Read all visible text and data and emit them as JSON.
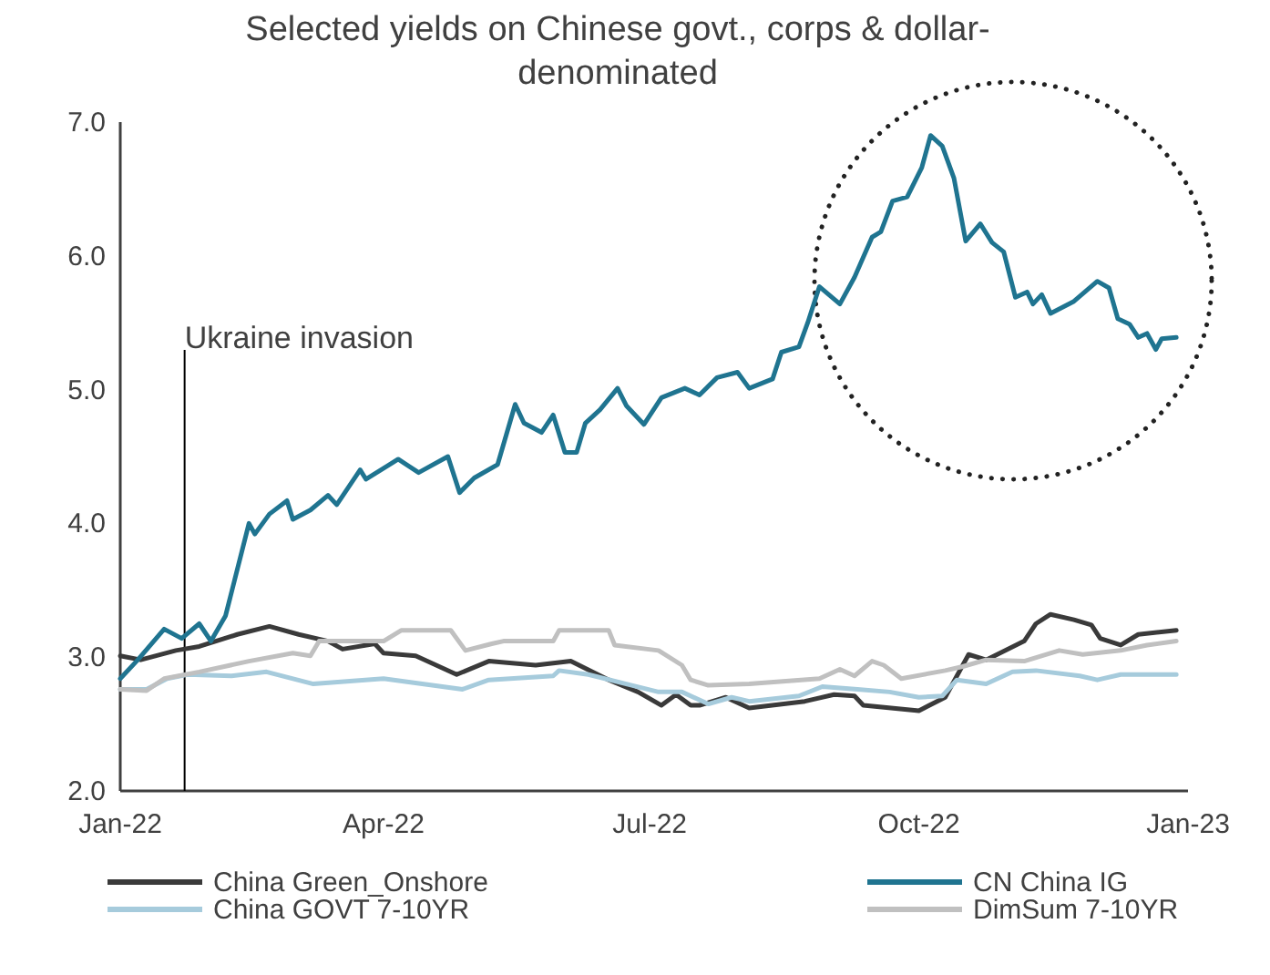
{
  "chart_data": {
    "type": "line",
    "title": "Selected yields on Chinese govt., corps & dollar-denominated",
    "xlim": [
      "2022-01-01",
      "2023-01-01"
    ],
    "xticks": [
      {
        "value": "2022-01-01",
        "label": "Jan-22"
      },
      {
        "value": "2022-04-01",
        "label": "Apr-22"
      },
      {
        "value": "2022-07-01",
        "label": "Jul-22"
      },
      {
        "value": "2022-10-01",
        "label": "Oct-22"
      },
      {
        "value": "2023-01-01",
        "label": "Jan-23"
      }
    ],
    "ylim": [
      2,
      7
    ],
    "yticks": [
      {
        "value": 2,
        "label": "2.0"
      },
      {
        "value": 3,
        "label": "3.0"
      },
      {
        "value": 4,
        "label": "4.0"
      },
      {
        "value": 5,
        "label": "5.0"
      },
      {
        "value": 6,
        "label": "6.0"
      },
      {
        "value": 7,
        "label": "7.0"
      }
    ],
    "grid": false,
    "legend": "bottom",
    "marker": "none",
    "line_style": "solid",
    "ref_lines": [
      {
        "axis": "x",
        "value": "2022-01-23",
        "label": "Ukraine invasion",
        "color": "#000000"
      }
    ],
    "series": [
      {
        "name": "China Green_Onshore",
        "color": "#3a3a3a",
        "x": [
          "2022-01-01",
          "2022-01-08",
          "2022-01-20",
          "2022-01-28",
          "2022-02-10",
          "2022-02-21",
          "2022-03-03",
          "2022-03-13",
          "2022-03-18",
          "2022-03-29",
          "2022-04-01",
          "2022-04-12",
          "2022-04-26",
          "2022-05-07",
          "2022-05-23",
          "2022-06-04",
          "2022-06-17",
          "2022-06-27",
          "2022-07-05",
          "2022-07-10",
          "2022-07-15",
          "2022-07-18",
          "2022-07-27",
          "2022-08-04",
          "2022-08-23",
          "2022-09-02",
          "2022-09-09",
          "2022-09-12",
          "2022-10-01",
          "2022-10-10",
          "2022-10-18",
          "2022-10-24",
          "2022-11-06",
          "2022-11-10",
          "2022-11-15",
          "2022-11-23",
          "2022-11-29",
          "2022-12-02",
          "2022-12-09",
          "2022-12-15",
          "2022-12-28"
        ],
        "values": [
          3.01,
          2.98,
          3.05,
          3.08,
          3.17,
          3.23,
          3.17,
          3.12,
          3.06,
          3.1,
          3.03,
          3.01,
          2.87,
          2.97,
          2.94,
          2.97,
          2.83,
          2.74,
          2.64,
          2.72,
          2.64,
          2.64,
          2.7,
          2.62,
          2.67,
          2.72,
          2.71,
          2.64,
          2.6,
          2.7,
          3.02,
          2.98,
          3.12,
          3.25,
          3.32,
          3.28,
          3.24,
          3.14,
          3.09,
          3.17,
          3.2
        ]
      },
      {
        "name": "CN China IG",
        "color": "#1f7490",
        "x": [
          "2022-01-01",
          "2022-01-07",
          "2022-01-16",
          "2022-01-22",
          "2022-01-28",
          "2022-02-01",
          "2022-02-06",
          "2022-02-14",
          "2022-02-16",
          "2022-02-21",
          "2022-02-27",
          "2022-03-01",
          "2022-03-07",
          "2022-03-13",
          "2022-03-16",
          "2022-03-24",
          "2022-03-26",
          "2022-04-06",
          "2022-04-13",
          "2022-04-23",
          "2022-04-27",
          "2022-05-02",
          "2022-05-10",
          "2022-05-16",
          "2022-05-19",
          "2022-05-25",
          "2022-05-29",
          "2022-06-02",
          "2022-06-06",
          "2022-06-09",
          "2022-06-14",
          "2022-06-20",
          "2022-06-23",
          "2022-06-29",
          "2022-07-05",
          "2022-07-13",
          "2022-07-18",
          "2022-07-24",
          "2022-07-31",
          "2022-08-04",
          "2022-08-12",
          "2022-08-15",
          "2022-08-21",
          "2022-08-24",
          "2022-08-28",
          "2022-09-04",
          "2022-09-09",
          "2022-09-15",
          "2022-09-18",
          "2022-09-22",
          "2022-09-27",
          "2022-10-02",
          "2022-10-05",
          "2022-10-09",
          "2022-10-13",
          "2022-10-17",
          "2022-10-22",
          "2022-10-26",
          "2022-10-30",
          "2022-11-03",
          "2022-11-07",
          "2022-11-09",
          "2022-11-12",
          "2022-11-15",
          "2022-11-23",
          "2022-12-01",
          "2022-12-05",
          "2022-12-08",
          "2022-12-12",
          "2022-12-15",
          "2022-12-18",
          "2022-12-21",
          "2022-12-23",
          "2022-12-28"
        ],
        "values": [
          2.84,
          2.98,
          3.21,
          3.14,
          3.25,
          3.12,
          3.31,
          4.0,
          3.92,
          4.07,
          4.17,
          4.03,
          4.1,
          4.21,
          4.14,
          4.4,
          4.33,
          4.48,
          4.38,
          4.5,
          4.23,
          4.34,
          4.44,
          4.89,
          4.75,
          4.68,
          4.81,
          4.53,
          4.53,
          4.75,
          4.85,
          5.01,
          4.88,
          4.74,
          4.94,
          5.01,
          4.96,
          5.09,
          5.13,
          5.01,
          5.08,
          5.28,
          5.32,
          5.5,
          5.77,
          5.64,
          5.84,
          6.14,
          6.18,
          6.41,
          6.44,
          6.66,
          6.9,
          6.82,
          6.58,
          6.11,
          6.24,
          6.1,
          6.03,
          5.69,
          5.73,
          5.64,
          5.71,
          5.57,
          5.66,
          5.81,
          5.76,
          5.53,
          5.49,
          5.39,
          5.42,
          5.3,
          5.38,
          5.39
        ]
      },
      {
        "name": "China GOVT 7-10YR",
        "color": "#a6cbdc",
        "x": [
          "2022-01-01",
          "2022-01-10",
          "2022-01-17",
          "2022-01-24",
          "2022-02-08",
          "2022-02-20",
          "2022-03-08",
          "2022-04-01",
          "2022-04-28",
          "2022-05-07",
          "2022-05-29",
          "2022-05-31",
          "2022-06-10",
          "2022-06-23",
          "2022-07-04",
          "2022-07-12",
          "2022-07-21",
          "2022-07-29",
          "2022-08-04",
          "2022-08-21",
          "2022-08-29",
          "2022-09-10",
          "2022-09-21",
          "2022-10-01",
          "2022-10-09",
          "2022-10-14",
          "2022-10-24",
          "2022-11-02",
          "2022-11-10",
          "2022-11-25",
          "2022-12-01",
          "2022-12-09",
          "2022-12-28"
        ],
        "values": [
          2.76,
          2.76,
          2.84,
          2.87,
          2.86,
          2.89,
          2.8,
          2.84,
          2.76,
          2.83,
          2.86,
          2.9,
          2.87,
          2.8,
          2.74,
          2.74,
          2.65,
          2.7,
          2.67,
          2.71,
          2.78,
          2.76,
          2.74,
          2.7,
          2.71,
          2.83,
          2.8,
          2.89,
          2.9,
          2.86,
          2.83,
          2.87,
          2.87
        ]
      },
      {
        "name": "DimSum 7-10YR",
        "color": "#c0c0c0",
        "x": [
          "2022-01-01",
          "2022-01-10",
          "2022-01-16",
          "2022-01-28",
          "2022-02-14",
          "2022-03-01",
          "2022-03-07",
          "2022-03-10",
          "2022-04-01",
          "2022-04-07",
          "2022-04-24",
          "2022-04-29",
          "2022-05-08",
          "2022-05-12",
          "2022-05-29",
          "2022-05-31",
          "2022-06-17",
          "2022-06-19",
          "2022-07-04",
          "2022-07-12",
          "2022-07-15",
          "2022-07-21",
          "2022-08-04",
          "2022-08-28",
          "2022-09-04",
          "2022-09-09",
          "2022-09-15",
          "2022-09-19",
          "2022-09-25",
          "2022-10-10",
          "2022-10-16",
          "2022-10-24",
          "2022-11-06",
          "2022-11-18",
          "2022-11-26",
          "2022-12-09",
          "2022-12-18",
          "2022-12-28"
        ],
        "values": [
          2.76,
          2.75,
          2.84,
          2.89,
          2.97,
          3.03,
          3.01,
          3.12,
          3.12,
          3.2,
          3.2,
          3.05,
          3.1,
          3.12,
          3.12,
          3.2,
          3.2,
          3.09,
          3.05,
          2.94,
          2.83,
          2.79,
          2.8,
          2.84,
          2.91,
          2.86,
          2.97,
          2.94,
          2.84,
          2.9,
          2.93,
          2.98,
          2.97,
          3.05,
          3.02,
          3.05,
          3.09,
          3.12
        ]
      }
    ]
  }
}
